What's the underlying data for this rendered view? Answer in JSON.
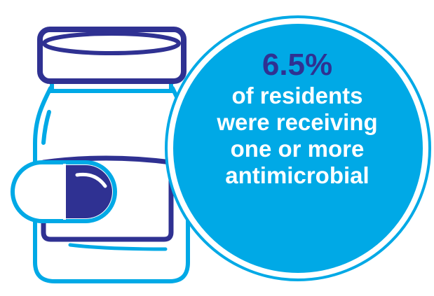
{
  "infographic": {
    "stat_value": "6.5%",
    "caption_lines": [
      "of residents",
      "were receiving",
      "one or more",
      "antimicrobial"
    ]
  },
  "colors": {
    "circle_fill": "#00a9e6",
    "outline_blue": "#00a9e6",
    "navy": "#2f3192",
    "white": "#ffffff"
  },
  "icons": [
    "medicine-bottle-icon",
    "capsule-icon"
  ]
}
